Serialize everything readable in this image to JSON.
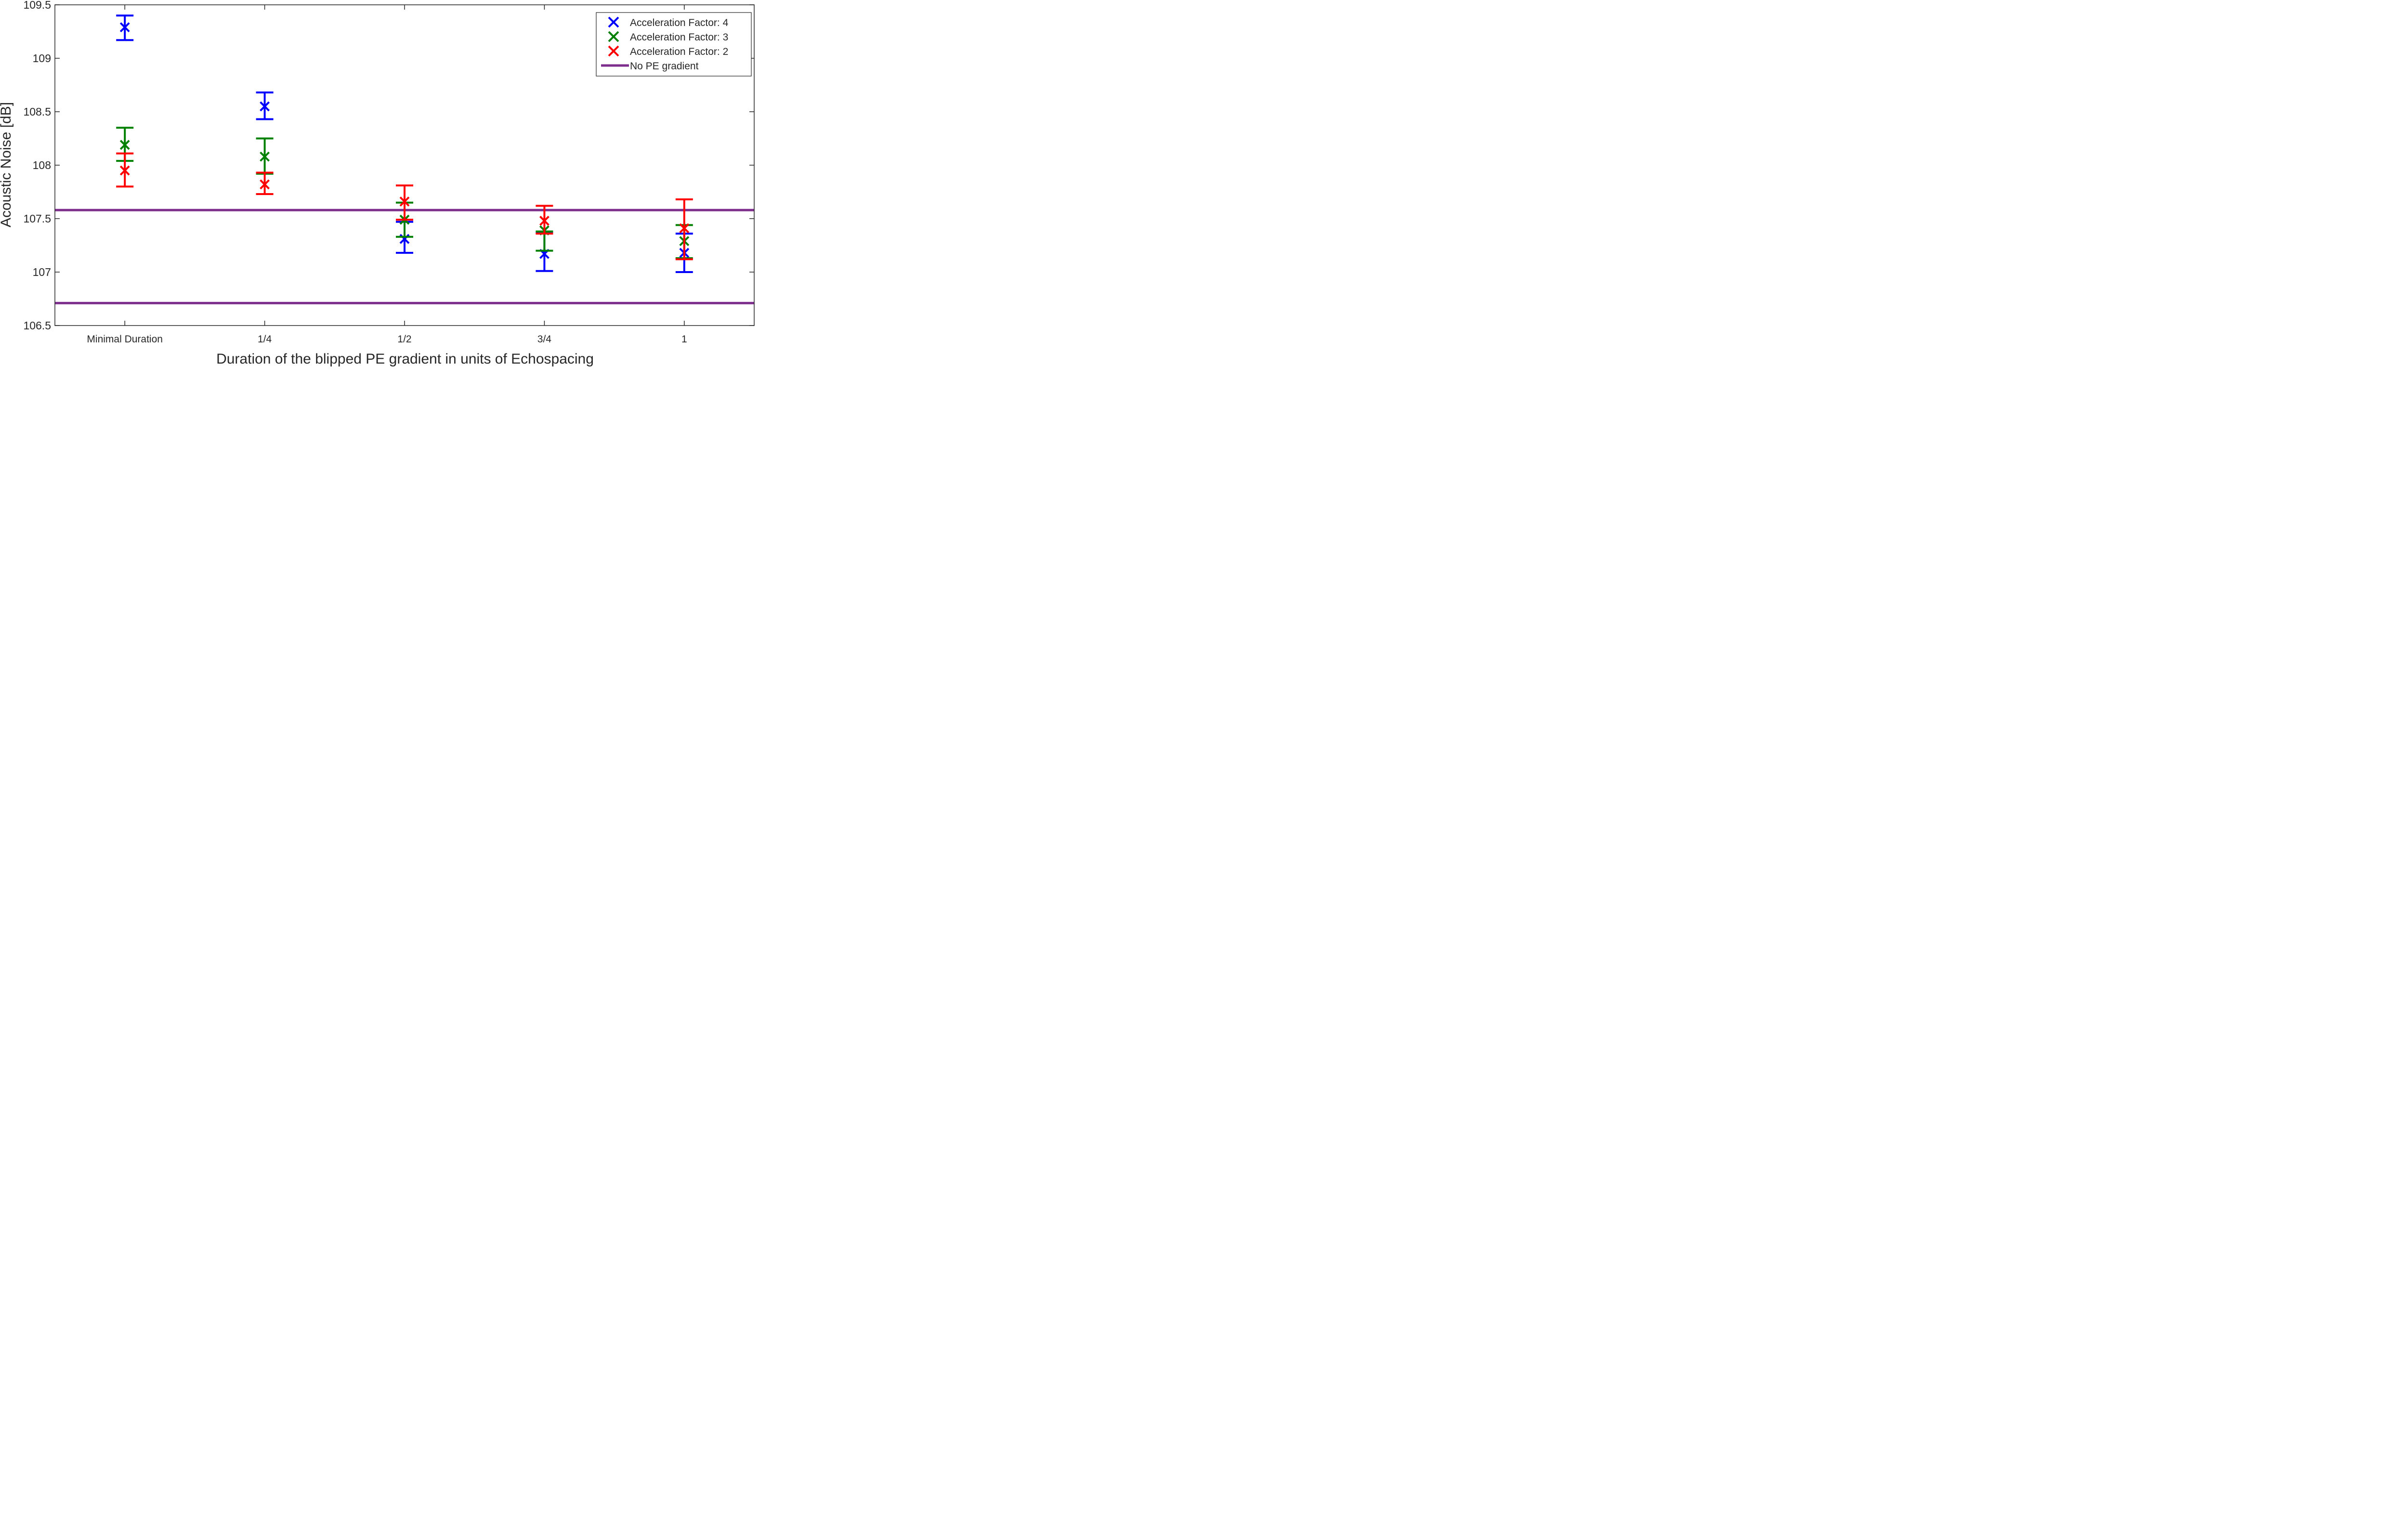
{
  "chart_data": {
    "type": "scatter",
    "title": "",
    "xlabel": "Duration of the blipped PE gradient in units of Echospacing",
    "ylabel": "Acoustic Noise [dB]",
    "categories": [
      "Minimal Duration",
      "1/4",
      "1/2",
      "3/4",
      "1"
    ],
    "ylim": [
      106.5,
      109.5
    ],
    "yticks": [
      "106.5",
      "107",
      "107.5",
      "108",
      "108.5",
      "109",
      "109.5"
    ],
    "grid": false,
    "legend_position": "top-right",
    "series": [
      {
        "name": "Acceleration Factor: 4",
        "color": "#0000ff",
        "marker": "x",
        "values": [
          109.29,
          108.55,
          107.31,
          107.17,
          107.18
        ],
        "err_low": [
          109.17,
          108.43,
          107.18,
          107.01,
          107.0
        ],
        "err_high": [
          109.4,
          108.68,
          107.47,
          107.37,
          107.36
        ]
      },
      {
        "name": "Acceleration Factor: 3",
        "color": "#008000",
        "marker": "x",
        "values": [
          108.19,
          108.08,
          107.49,
          107.39,
          107.29
        ],
        "err_low": [
          108.04,
          107.92,
          107.33,
          107.2,
          107.13
        ],
        "err_high": [
          108.35,
          108.25,
          107.65,
          107.38,
          107.44
        ]
      },
      {
        "name": "Acceleration Factor: 2",
        "color": "#ff0000",
        "marker": "x",
        "values": [
          107.95,
          107.82,
          107.66,
          107.48,
          107.41
        ],
        "err_low": [
          107.8,
          107.73,
          107.49,
          107.36,
          107.12
        ],
        "err_high": [
          108.11,
          107.93,
          107.81,
          107.62,
          107.68
        ]
      }
    ],
    "reference_lines": {
      "name": "No PE gradient",
      "color": "#7e2f8e",
      "values": [
        107.58,
        106.71
      ]
    }
  }
}
